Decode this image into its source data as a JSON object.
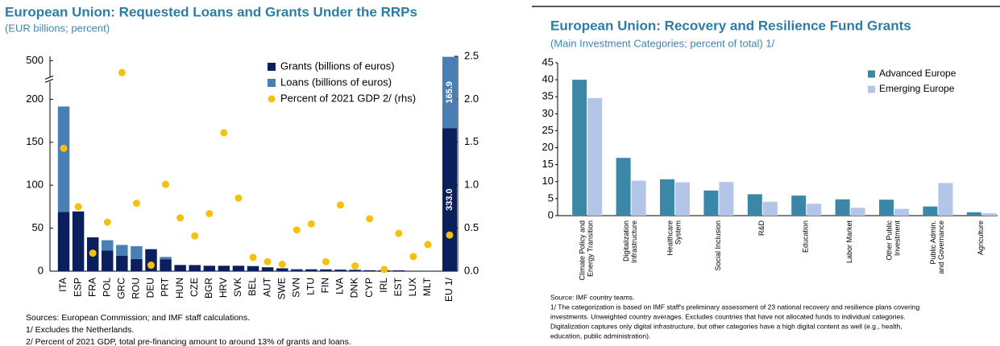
{
  "chart_data": [
    {
      "type": "stacked_bar",
      "title": "European Union: Requested Loans and Grants Under the RRPs",
      "subtitle": "(EUR billions; percent)",
      "categories": [
        "ITA",
        "ESP",
        "FRA",
        "POL",
        "GRC",
        "ROU",
        "DEU",
        "PRT",
        "HUN",
        "CZE",
        "BGR",
        "HRV",
        "SVK",
        "BEL",
        "AUT",
        "SWE",
        "SVN",
        "LTU",
        "FIN",
        "LVA",
        "DNK",
        "CYP",
        "IRL",
        "EST",
        "LUX",
        "MLT"
      ],
      "series": [
        {
          "name": "Grants (billions of euros)",
          "color": "#0b1f5c",
          "values": [
            69,
            69.5,
            39.4,
            23.9,
            17.8,
            14.2,
            25.6,
            13.9,
            7.2,
            7.1,
            6.3,
            6.3,
            6.3,
            5.9,
            4.5,
            3.3,
            1.8,
            2.2,
            2.1,
            1.8,
            1.6,
            1.0,
            1.0,
            1.0,
            0.1,
            0.3
          ]
        },
        {
          "name": "Loans (billions of euros)",
          "color": "#4a7fb5",
          "values": [
            122.6,
            0,
            0,
            12.1,
            12.7,
            14.9,
            0,
            2.7,
            0,
            0,
            0,
            0,
            0,
            0,
            0,
            0,
            0.7,
            0,
            0,
            0,
            0,
            0.2,
            0,
            0,
            0,
            0
          ]
        },
        {
          "name": "Percent of 2021 GDP 2/ (rhs)",
          "color": "#f5c10e",
          "axis": "y2",
          "values": [
            1.43,
            0.75,
            0.21,
            0.57,
            2.31,
            0.79,
            0.07,
            1.01,
            0.62,
            0.41,
            0.67,
            1.61,
            0.85,
            0.16,
            0.11,
            0.08,
            0.48,
            0.55,
            0.11,
            0.77,
            0.06,
            0.61,
            0.02,
            0.44,
            0.17,
            0.31
          ]
        }
      ],
      "inset": {
        "categories": [
          "EU 1/"
        ],
        "ylim": [
          0,
          500
        ],
        "series": [
          {
            "values": [
              333.0
            ],
            "value_labels": [
              "333.0"
            ]
          },
          {
            "values": [
              165.9
            ],
            "value_labels": [
              "165.9"
            ]
          },
          {
            "values": [
              0.42
            ]
          }
        ]
      },
      "ylim": [
        0,
        500
      ],
      "yticks": [
        0,
        50,
        100,
        150,
        200,
        500
      ],
      "axis_break": true,
      "y2lim": [
        0,
        2.5
      ],
      "y2ticks": [
        {
          "value": 0,
          "label": "0.0"
        },
        0.5,
        {
          "value": 1,
          "label": "1.0"
        },
        1.5,
        {
          "value": 2,
          "label": "2.0"
        },
        2.5
      ],
      "legend": "upper right",
      "notes": [
        "Sources: European Commission; and IMF staff calculations.",
        "1/ Excludes the Netherlands.",
        "2/ Percent of 2021 GDP, total pre-financing amount to around 13% of grants and loans."
      ]
    },
    {
      "type": "grouped_bar",
      "title": "European Union: Recovery and Resilience Fund Grants",
      "subtitle": "(Main Investment Categories; percent of total) 1/",
      "categories": [
        [
          "Climate Policy and",
          "Energy Transition"
        ],
        [
          "Digitalization",
          "Infrastructure"
        ],
        [
          "Healthcare",
          "System"
        ],
        [
          "Social Inclusion"
        ],
        [
          "R&D"
        ],
        [
          "Education"
        ],
        [
          "Labor Market"
        ],
        [
          "Other Public",
          "Investment"
        ],
        [
          "Public Admin.",
          "and Governance"
        ],
        [
          "Agriculture"
        ]
      ],
      "series": [
        {
          "name": "Advanced Europe",
          "color": "#3a87a8",
          "values": [
            40,
            17,
            10.7,
            7.4,
            6.3,
            5.9,
            4.8,
            4.7,
            2.7,
            1.0
          ]
        },
        {
          "name": "Emerging Europe",
          "color": "#b4c6e7",
          "values": [
            34.6,
            10.3,
            9.8,
            9.9,
            4.1,
            3.5,
            2.3,
            2.0,
            9.6,
            0.7
          ]
        }
      ],
      "ylim": [
        0,
        45
      ],
      "yticks": [
        0,
        5,
        10,
        15,
        20,
        25,
        30,
        35,
        40,
        45
      ],
      "legend": "upper right",
      "notes": [
        "Source: IMF country teams.",
        "1/ The categorization is based on IMF staff's preliminary assessment of 23 national recovery and resilience plans covering",
        "investments. Unweighted country averages. Excludes countries that have not allocated funds to individual categories.",
        "Digitalization captures only digital infrastructure, but other categories have a high digital content as well (e.g., health,",
        "education, public administration)."
      ]
    }
  ]
}
